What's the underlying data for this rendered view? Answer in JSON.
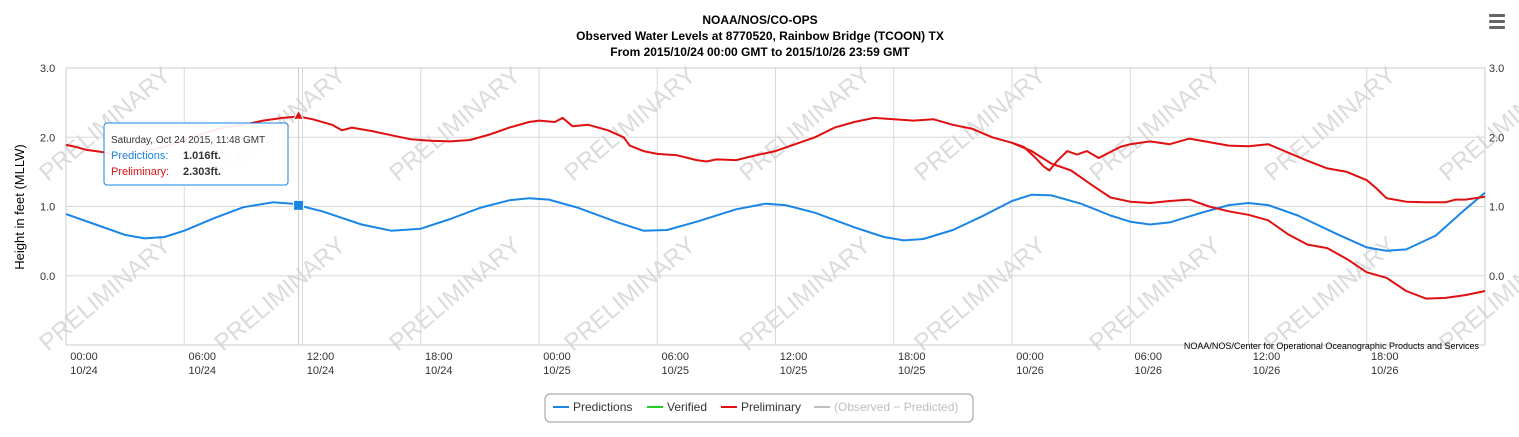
{
  "chart_data": {
    "type": "line",
    "title": "NOAA/NOS/CO-OPS",
    "subtitle_line1": "Observed Water Levels at 8770520, Rainbow Bridge (TCOON) TX",
    "subtitle_line2": "From 2015/10/24 00:00 GMT to 2015/10/26 23:59 GMT",
    "ylabel": "Height in feet (MLLW)",
    "ylim": [
      -1.0,
      3.0
    ],
    "xlim_hours": [
      0,
      72
    ],
    "y_ticks": [
      "0.0",
      "1.0",
      "2.0",
      "3.0"
    ],
    "y_tick_values": [
      0,
      1,
      2,
      3
    ],
    "x_ticks": [
      {
        "time": "00:00",
        "date": "10/24",
        "hour": 0
      },
      {
        "time": "06:00",
        "date": "10/24",
        "hour": 6
      },
      {
        "time": "12:00",
        "date": "10/24",
        "hour": 12
      },
      {
        "time": "18:00",
        "date": "10/24",
        "hour": 18
      },
      {
        "time": "00:00",
        "date": "10/25",
        "hour": 24
      },
      {
        "time": "06:00",
        "date": "10/25",
        "hour": 30
      },
      {
        "time": "12:00",
        "date": "10/25",
        "hour": 36
      },
      {
        "time": "18:00",
        "date": "10/25",
        "hour": 42
      },
      {
        "time": "00:00",
        "date": "10/26",
        "hour": 48
      },
      {
        "time": "06:00",
        "date": "10/26",
        "hour": 54
      },
      {
        "time": "12:00",
        "date": "10/26",
        "hour": 60
      },
      {
        "time": "18:00",
        "date": "10/26",
        "hour": 66
      }
    ],
    "grid": true,
    "legend_position": "bottom-center",
    "credit": "NOAA/NOS/Center for Operational Oceanographic Products and Services",
    "watermark": "PRELIMINARY",
    "series": [
      {
        "name": "Predictions",
        "color": "#1a86e6",
        "points": [
          [
            0,
            0.89
          ],
          [
            1.5,
            0.74
          ],
          [
            3,
            0.59
          ],
          [
            4,
            0.54
          ],
          [
            5,
            0.56
          ],
          [
            6,
            0.65
          ],
          [
            7.5,
            0.83
          ],
          [
            9,
            0.99
          ],
          [
            10.5,
            1.06
          ],
          [
            11.5,
            1.04
          ],
          [
            11.8,
            1.016
          ],
          [
            13,
            0.93
          ],
          [
            15,
            0.74
          ],
          [
            16.5,
            0.65
          ],
          [
            18,
            0.68
          ],
          [
            19.5,
            0.82
          ],
          [
            21,
            0.98
          ],
          [
            22.5,
            1.09
          ],
          [
            23.5,
            1.12
          ],
          [
            24.5,
            1.1
          ],
          [
            26,
            0.98
          ],
          [
            28,
            0.77
          ],
          [
            29.3,
            0.65
          ],
          [
            30.5,
            0.66
          ],
          [
            32,
            0.78
          ],
          [
            34,
            0.96
          ],
          [
            35.5,
            1.04
          ],
          [
            36.5,
            1.02
          ],
          [
            38,
            0.91
          ],
          [
            40,
            0.7
          ],
          [
            41.5,
            0.56
          ],
          [
            42.5,
            0.51
          ],
          [
            43.5,
            0.53
          ],
          [
            45,
            0.66
          ],
          [
            46.5,
            0.86
          ],
          [
            48,
            1.08
          ],
          [
            49,
            1.17
          ],
          [
            50,
            1.16
          ],
          [
            51.5,
            1.04
          ],
          [
            53,
            0.87
          ],
          [
            54,
            0.78
          ],
          [
            55,
            0.74
          ],
          [
            56,
            0.77
          ],
          [
            57.5,
            0.9
          ],
          [
            59,
            1.02
          ],
          [
            60,
            1.05
          ],
          [
            61,
            1.02
          ],
          [
            62.5,
            0.87
          ],
          [
            64.5,
            0.6
          ],
          [
            66,
            0.41
          ],
          [
            67,
            0.36
          ],
          [
            68,
            0.38
          ],
          [
            69.5,
            0.58
          ],
          [
            71,
            0.96
          ],
          [
            72,
            1.2
          ]
        ]
      },
      {
        "name": "Verified",
        "color": "#22cc22",
        "points": []
      },
      {
        "name": "Preliminary",
        "color": "#e01010",
        "points": [
          [
            0,
            1.89
          ],
          [
            0.5,
            1.86
          ],
          [
            1,
            1.82
          ],
          [
            1.5,
            1.8
          ],
          [
            2,
            1.78
          ],
          [
            2.5,
            1.74
          ],
          [
            3,
            1.72
          ],
          [
            3.5,
            1.75
          ],
          [
            4,
            1.8
          ],
          [
            5,
            1.86
          ],
          [
            6,
            1.96
          ],
          [
            7,
            2.06
          ],
          [
            8,
            2.14
          ],
          [
            9,
            2.18
          ],
          [
            10,
            2.24
          ],
          [
            11,
            2.28
          ],
          [
            11.8,
            2.3
          ],
          [
            12.5,
            2.26
          ],
          [
            13.5,
            2.18
          ],
          [
            14,
            2.1
          ],
          [
            14.5,
            2.14
          ],
          [
            15.5,
            2.09
          ],
          [
            16.5,
            2.03
          ],
          [
            17.5,
            1.97
          ],
          [
            18.5,
            1.95
          ],
          [
            19.5,
            1.94
          ],
          [
            20.5,
            1.96
          ],
          [
            21.5,
            2.04
          ],
          [
            22.5,
            2.14
          ],
          [
            23.5,
            2.22
          ],
          [
            24,
            2.24
          ],
          [
            24.8,
            2.22
          ],
          [
            25.2,
            2.28
          ],
          [
            25.7,
            2.16
          ],
          [
            26.5,
            2.18
          ],
          [
            27.5,
            2.1
          ],
          [
            28.3,
            2.0
          ],
          [
            28.6,
            1.88
          ],
          [
            29.3,
            1.8
          ],
          [
            30,
            1.76
          ],
          [
            31,
            1.74
          ],
          [
            32,
            1.67
          ],
          [
            32.5,
            1.65
          ],
          [
            33,
            1.68
          ],
          [
            34,
            1.67
          ],
          [
            35,
            1.74
          ],
          [
            36,
            1.8
          ],
          [
            37,
            1.9
          ],
          [
            38,
            2.0
          ],
          [
            39,
            2.14
          ],
          [
            40,
            2.22
          ],
          [
            41,
            2.28
          ],
          [
            42,
            2.26
          ],
          [
            43,
            2.24
          ],
          [
            44,
            2.26
          ],
          [
            45,
            2.18
          ],
          [
            46,
            2.12
          ],
          [
            47,
            2.0
          ],
          [
            48,
            1.92
          ],
          [
            48.6,
            1.86
          ],
          [
            49.2,
            1.7
          ],
          [
            49.6,
            1.58
          ],
          [
            49.9,
            1.52
          ],
          [
            50.3,
            1.66
          ],
          [
            50.8,
            1.8
          ],
          [
            51.3,
            1.75
          ],
          [
            51.8,
            1.8
          ],
          [
            52.4,
            1.7
          ],
          [
            52.8,
            1.76
          ],
          [
            53.5,
            1.86
          ],
          [
            54,
            1.9
          ],
          [
            55,
            1.94
          ],
          [
            56,
            1.9
          ],
          [
            57,
            1.98
          ],
          [
            58,
            1.93
          ],
          [
            59,
            1.88
          ],
          [
            60,
            1.87
          ],
          [
            61,
            1.9
          ],
          [
            62,
            1.78
          ],
          [
            63,
            1.66
          ],
          [
            64,
            1.55
          ],
          [
            65,
            1.5
          ],
          [
            66,
            1.38
          ],
          [
            66.5,
            1.26
          ],
          [
            67,
            1.12
          ],
          [
            68,
            1.07
          ],
          [
            69,
            1.06
          ],
          [
            70,
            1.06
          ],
          [
            70.5,
            1.1
          ],
          [
            71,
            1.1
          ],
          [
            72,
            1.14
          ]
        ]
      },
      {
        "name": "(Observed − Predicted)",
        "color": "#c0c0c0",
        "points": []
      }
    ],
    "preliminary_second_day": [
      [
        48,
        1.92
      ],
      [
        49,
        1.8
      ],
      [
        50,
        1.62
      ],
      [
        51,
        1.52
      ],
      [
        52,
        1.32
      ],
      [
        53,
        1.13
      ],
      [
        54,
        1.07
      ],
      [
        55,
        1.05
      ],
      [
        56,
        1.08
      ],
      [
        57,
        1.1
      ],
      [
        58,
        1.0
      ],
      [
        59,
        0.93
      ],
      [
        60,
        0.88
      ],
      [
        61,
        0.8
      ],
      [
        62,
        0.6
      ],
      [
        63,
        0.45
      ],
      [
        64,
        0.4
      ],
      [
        65,
        0.24
      ],
      [
        66,
        0.05
      ],
      [
        67,
        -0.03
      ],
      [
        68,
        -0.22
      ],
      [
        69,
        -0.33
      ],
      [
        70,
        -0.32
      ],
      [
        71,
        -0.28
      ],
      [
        72,
        -0.22
      ]
    ]
  },
  "tooltip": {
    "header": "Saturday, Oct 24 2015, 11:48 GMT",
    "predictions_label": "Predictions:",
    "predictions_value": "1.016ft.",
    "preliminary_label": "Preliminary:",
    "preliminary_value": "2.303ft."
  },
  "legend": {
    "items": [
      {
        "label": "Predictions",
        "color": "#1a86e6",
        "active": true
      },
      {
        "label": "Verified",
        "color": "#22cc22",
        "active": true
      },
      {
        "label": "Preliminary",
        "color": "#e01010",
        "active": true
      },
      {
        "label": "(Observed − Predicted)",
        "color": "#c0c0c0",
        "active": false
      }
    ]
  },
  "menu": {
    "icon": "hamburger-menu-icon"
  }
}
